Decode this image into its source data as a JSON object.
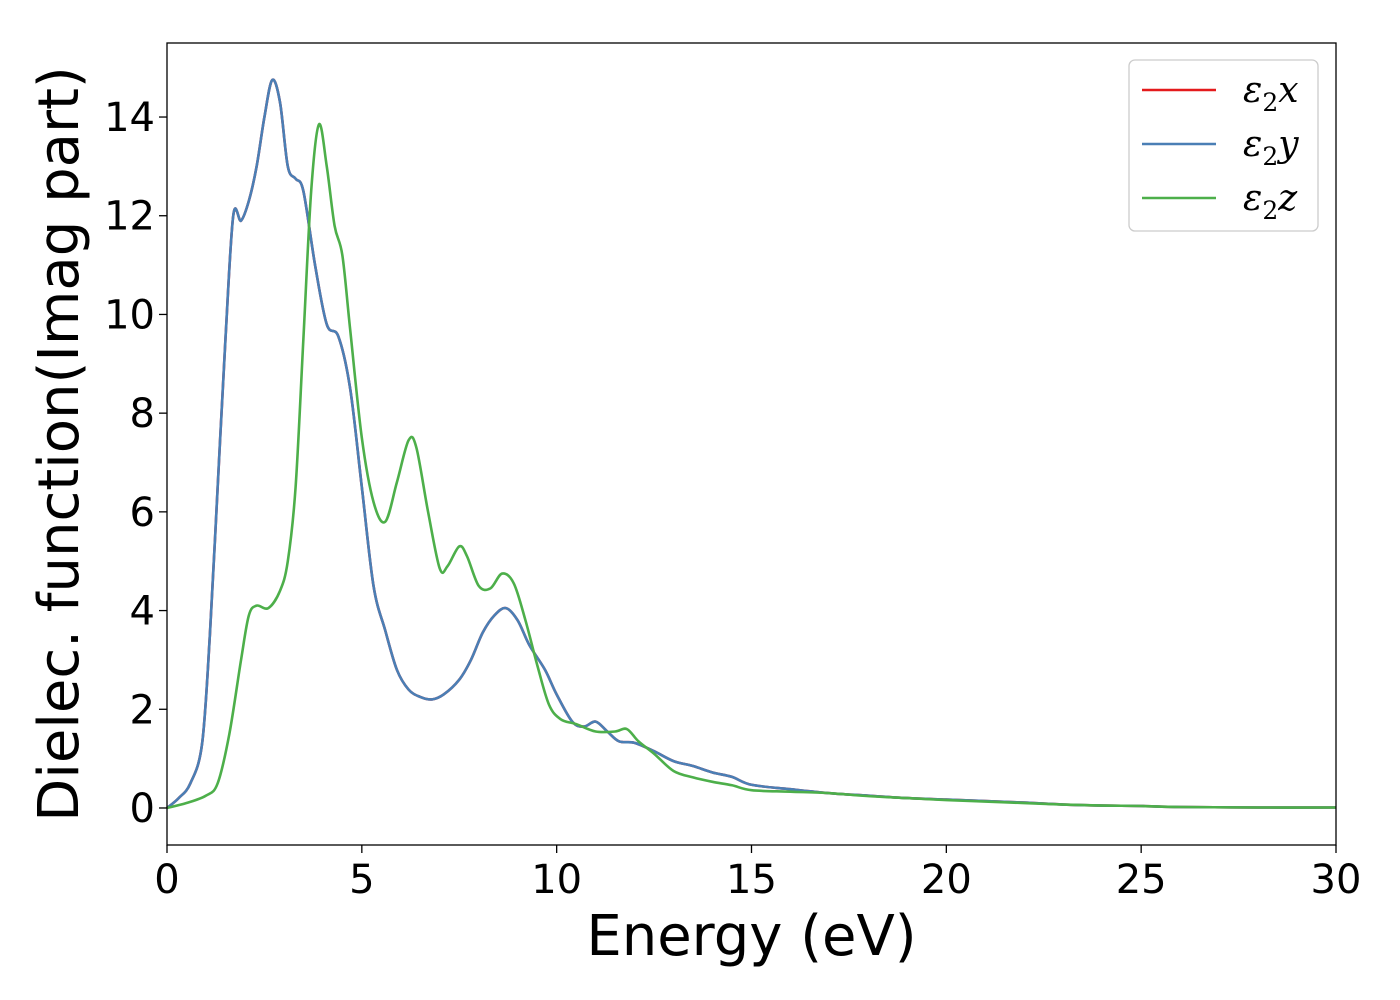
{
  "chart_data": {
    "type": "line",
    "xlabel": "Energy (eV)",
    "ylabel": "Dielec. function(Imag part)",
    "xlim": [
      0,
      30
    ],
    "ylim": [
      -0.75,
      15.5
    ],
    "x_ticks": [
      "0",
      "5",
      "10",
      "15",
      "20",
      "25",
      "30"
    ],
    "y_ticks": [
      "0",
      "2",
      "4",
      "6",
      "8",
      "10",
      "12",
      "14"
    ],
    "grid": false,
    "legend_position": "top-right",
    "series": [
      {
        "name": "ε2x",
        "legend_base": "ε",
        "legend_sub": "2",
        "legend_suffix": "x",
        "color": "#e41a1c",
        "points": [
          [
            0,
            0
          ],
          [
            0.3,
            0.2
          ],
          [
            0.6,
            0.5
          ],
          [
            0.9,
            1.3
          ],
          [
            1.1,
            3.5
          ],
          [
            1.3,
            6.5
          ],
          [
            1.5,
            9.5
          ],
          [
            1.7,
            12.0
          ],
          [
            1.9,
            11.9
          ],
          [
            2.1,
            12.3
          ],
          [
            2.3,
            13.0
          ],
          [
            2.5,
            14.0
          ],
          [
            2.7,
            14.75
          ],
          [
            2.9,
            14.3
          ],
          [
            3.1,
            13.0
          ],
          [
            3.3,
            12.75
          ],
          [
            3.5,
            12.5
          ],
          [
            3.8,
            11.0
          ],
          [
            4.1,
            9.8
          ],
          [
            4.4,
            9.55
          ],
          [
            4.7,
            8.5
          ],
          [
            5.0,
            6.5
          ],
          [
            5.3,
            4.5
          ],
          [
            5.6,
            3.6
          ],
          [
            5.9,
            2.8
          ],
          [
            6.2,
            2.4
          ],
          [
            6.5,
            2.25
          ],
          [
            6.8,
            2.2
          ],
          [
            7.1,
            2.3
          ],
          [
            7.5,
            2.6
          ],
          [
            7.8,
            3.0
          ],
          [
            8.1,
            3.55
          ],
          [
            8.4,
            3.9
          ],
          [
            8.7,
            4.05
          ],
          [
            9.0,
            3.8
          ],
          [
            9.3,
            3.3
          ],
          [
            9.7,
            2.8
          ],
          [
            10.0,
            2.3
          ],
          [
            10.4,
            1.75
          ],
          [
            10.7,
            1.65
          ],
          [
            11.0,
            1.75
          ],
          [
            11.3,
            1.55
          ],
          [
            11.6,
            1.35
          ],
          [
            12.0,
            1.32
          ],
          [
            12.5,
            1.15
          ],
          [
            13.0,
            0.95
          ],
          [
            13.5,
            0.85
          ],
          [
            14.0,
            0.72
          ],
          [
            14.5,
            0.63
          ],
          [
            15.0,
            0.47
          ],
          [
            16,
            0.38
          ],
          [
            17,
            0.3
          ],
          [
            18,
            0.25
          ],
          [
            19,
            0.2
          ],
          [
            20,
            0.17
          ],
          [
            21,
            0.14
          ],
          [
            22,
            0.11
          ],
          [
            23,
            0.07
          ],
          [
            24,
            0.05
          ],
          [
            25,
            0.04
          ],
          [
            26,
            0.02
          ],
          [
            28,
            0.01
          ],
          [
            30,
            0.01
          ]
        ]
      },
      {
        "name": "ε2y",
        "legend_base": "ε",
        "legend_sub": "2",
        "legend_suffix": "y",
        "color": "#4a7fb5",
        "points": [
          [
            0,
            0
          ],
          [
            0.3,
            0.2
          ],
          [
            0.6,
            0.5
          ],
          [
            0.9,
            1.3
          ],
          [
            1.1,
            3.5
          ],
          [
            1.3,
            6.5
          ],
          [
            1.5,
            9.5
          ],
          [
            1.7,
            12.0
          ],
          [
            1.9,
            11.9
          ],
          [
            2.1,
            12.3
          ],
          [
            2.3,
            13.0
          ],
          [
            2.5,
            14.0
          ],
          [
            2.7,
            14.75
          ],
          [
            2.9,
            14.3
          ],
          [
            3.1,
            13.0
          ],
          [
            3.3,
            12.75
          ],
          [
            3.5,
            12.5
          ],
          [
            3.8,
            11.0
          ],
          [
            4.1,
            9.8
          ],
          [
            4.4,
            9.55
          ],
          [
            4.7,
            8.5
          ],
          [
            5.0,
            6.5
          ],
          [
            5.3,
            4.5
          ],
          [
            5.6,
            3.6
          ],
          [
            5.9,
            2.8
          ],
          [
            6.2,
            2.4
          ],
          [
            6.5,
            2.25
          ],
          [
            6.8,
            2.2
          ],
          [
            7.1,
            2.3
          ],
          [
            7.5,
            2.6
          ],
          [
            7.8,
            3.0
          ],
          [
            8.1,
            3.55
          ],
          [
            8.4,
            3.9
          ],
          [
            8.7,
            4.05
          ],
          [
            9.0,
            3.8
          ],
          [
            9.3,
            3.3
          ],
          [
            9.7,
            2.8
          ],
          [
            10.0,
            2.3
          ],
          [
            10.4,
            1.75
          ],
          [
            10.7,
            1.65
          ],
          [
            11.0,
            1.75
          ],
          [
            11.3,
            1.55
          ],
          [
            11.6,
            1.35
          ],
          [
            12.0,
            1.32
          ],
          [
            12.5,
            1.15
          ],
          [
            13.0,
            0.95
          ],
          [
            13.5,
            0.85
          ],
          [
            14.0,
            0.72
          ],
          [
            14.5,
            0.63
          ],
          [
            15.0,
            0.47
          ],
          [
            16,
            0.38
          ],
          [
            17,
            0.3
          ],
          [
            18,
            0.25
          ],
          [
            19,
            0.2
          ],
          [
            20,
            0.17
          ],
          [
            21,
            0.14
          ],
          [
            22,
            0.11
          ],
          [
            23,
            0.07
          ],
          [
            24,
            0.05
          ],
          [
            25,
            0.04
          ],
          [
            26,
            0.02
          ],
          [
            28,
            0.01
          ],
          [
            30,
            0.01
          ]
        ]
      },
      {
        "name": "ε2z",
        "legend_base": "ε",
        "legend_sub": "2",
        "legend_suffix": "z",
        "color": "#4daf4a",
        "points": [
          [
            0,
            0
          ],
          [
            0.5,
            0.1
          ],
          [
            1.0,
            0.25
          ],
          [
            1.3,
            0.5
          ],
          [
            1.6,
            1.5
          ],
          [
            1.9,
            3.0
          ],
          [
            2.1,
            3.9
          ],
          [
            2.3,
            4.1
          ],
          [
            2.6,
            4.05
          ],
          [
            2.9,
            4.4
          ],
          [
            3.1,
            5.0
          ],
          [
            3.3,
            6.5
          ],
          [
            3.5,
            9.5
          ],
          [
            3.7,
            12.5
          ],
          [
            3.9,
            13.85
          ],
          [
            4.1,
            13.0
          ],
          [
            4.3,
            11.8
          ],
          [
            4.5,
            11.2
          ],
          [
            4.7,
            9.7
          ],
          [
            5.0,
            7.5
          ],
          [
            5.3,
            6.2
          ],
          [
            5.6,
            5.8
          ],
          [
            5.9,
            6.6
          ],
          [
            6.2,
            7.45
          ],
          [
            6.4,
            7.3
          ],
          [
            6.7,
            6.0
          ],
          [
            7.0,
            4.85
          ],
          [
            7.2,
            4.9
          ],
          [
            7.5,
            5.3
          ],
          [
            7.7,
            5.1
          ],
          [
            8.0,
            4.5
          ],
          [
            8.3,
            4.45
          ],
          [
            8.6,
            4.75
          ],
          [
            8.9,
            4.55
          ],
          [
            9.2,
            3.8
          ],
          [
            9.5,
            2.9
          ],
          [
            9.8,
            2.1
          ],
          [
            10.1,
            1.8
          ],
          [
            10.5,
            1.7
          ],
          [
            11.0,
            1.55
          ],
          [
            11.5,
            1.55
          ],
          [
            11.8,
            1.6
          ],
          [
            12.1,
            1.35
          ],
          [
            12.5,
            1.1
          ],
          [
            13.0,
            0.75
          ],
          [
            13.5,
            0.62
          ],
          [
            14.0,
            0.53
          ],
          [
            14.5,
            0.46
          ],
          [
            15.0,
            0.36
          ],
          [
            16,
            0.33
          ],
          [
            17,
            0.3
          ],
          [
            18,
            0.24
          ],
          [
            19,
            0.2
          ],
          [
            20,
            0.16
          ],
          [
            21,
            0.13
          ],
          [
            22,
            0.1
          ],
          [
            23,
            0.07
          ],
          [
            24,
            0.05
          ],
          [
            25,
            0.04
          ],
          [
            26,
            0.02
          ],
          [
            28,
            0.01
          ],
          [
            30,
            0.01
          ]
        ]
      }
    ]
  }
}
